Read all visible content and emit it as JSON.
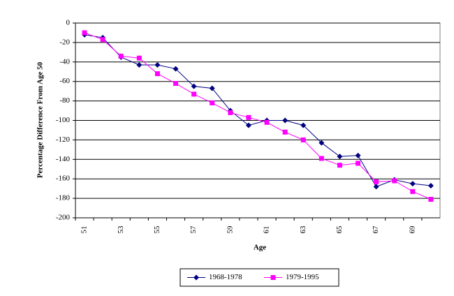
{
  "chart_data": {
    "type": "line",
    "x_label": "Age",
    "y_label": "Percentage Difference From Age 50",
    "categories": [
      "51",
      null,
      "53",
      null,
      "55",
      null,
      "57",
      null,
      "59",
      null,
      "61",
      null,
      "63",
      null,
      "65",
      null,
      "67",
      null,
      "69",
      null
    ],
    "series": [
      {
        "name": "1968-1978",
        "color": "#000080",
        "marker": "diamond",
        "values": [
          -12,
          -15,
          -35,
          -43,
          -43,
          -47,
          -65,
          -67,
          -90,
          -105,
          -100,
          -100,
          -105,
          -123,
          -137,
          -136,
          -168,
          -161,
          -165,
          -167
        ]
      },
      {
        "name": "1979-1995",
        "color": "#ff00ff",
        "marker": "square",
        "values": [
          -10,
          -17,
          -34,
          -36,
          -52,
          -62,
          -73,
          -82,
          -92,
          -97,
          -102,
          -112,
          -120,
          -139,
          -146,
          -144,
          -163,
          -162,
          -173,
          -181
        ]
      }
    ],
    "ylim": [
      -200,
      0
    ],
    "yticks": [
      0,
      -20,
      -40,
      -60,
      -80,
      -100,
      -120,
      -140,
      -160,
      -180,
      -200
    ],
    "grid": true,
    "legend": "bottom"
  }
}
